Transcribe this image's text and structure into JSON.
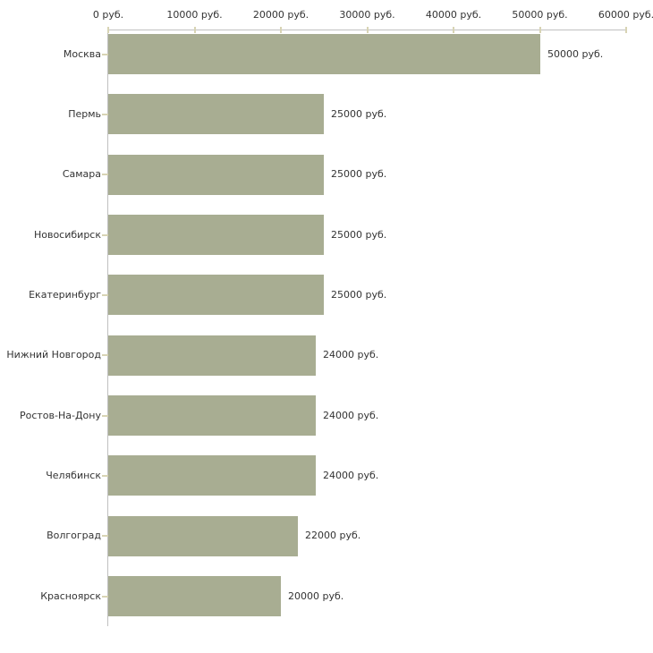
{
  "chart_data": {
    "type": "bar",
    "orientation": "horizontal",
    "title": "",
    "xlabel": "",
    "ylabel": "",
    "xlim": [
      0,
      60000
    ],
    "grid": false,
    "legend": "none",
    "value_suffix": " руб.",
    "x_ticks": [
      {
        "value": 0,
        "label": "0 руб."
      },
      {
        "value": 10000,
        "label": "10000 руб."
      },
      {
        "value": 20000,
        "label": "20000 руб."
      },
      {
        "value": 30000,
        "label": "30000 руб."
      },
      {
        "value": 40000,
        "label": "40000 руб."
      },
      {
        "value": 50000,
        "label": "50000 руб."
      },
      {
        "value": 60000,
        "label": "60000 руб."
      }
    ],
    "categories": [
      "Москва",
      "Пермь",
      "Самара",
      "Новосибирск",
      "Екатеринбург",
      "Нижний Новгород",
      "Ростов-На-Дону",
      "Челябинск",
      "Волгоград",
      "Красноярск"
    ],
    "values": [
      50000,
      25000,
      25000,
      25000,
      25000,
      24000,
      24000,
      24000,
      22000,
      20000
    ],
    "value_labels": [
      "50000 руб.",
      "25000 руб.",
      "25000 руб.",
      "25000 руб.",
      "25000 руб.",
      "24000 руб.",
      "24000 руб.",
      "24000 руб.",
      "22000 руб.",
      "20000 руб."
    ],
    "colors": {
      "bar_fill": "#a8ad92",
      "axis_line": "#c0c0c0",
      "tick_mark": "#d8d4b4",
      "text": "#333333",
      "background": "#ffffff"
    }
  }
}
